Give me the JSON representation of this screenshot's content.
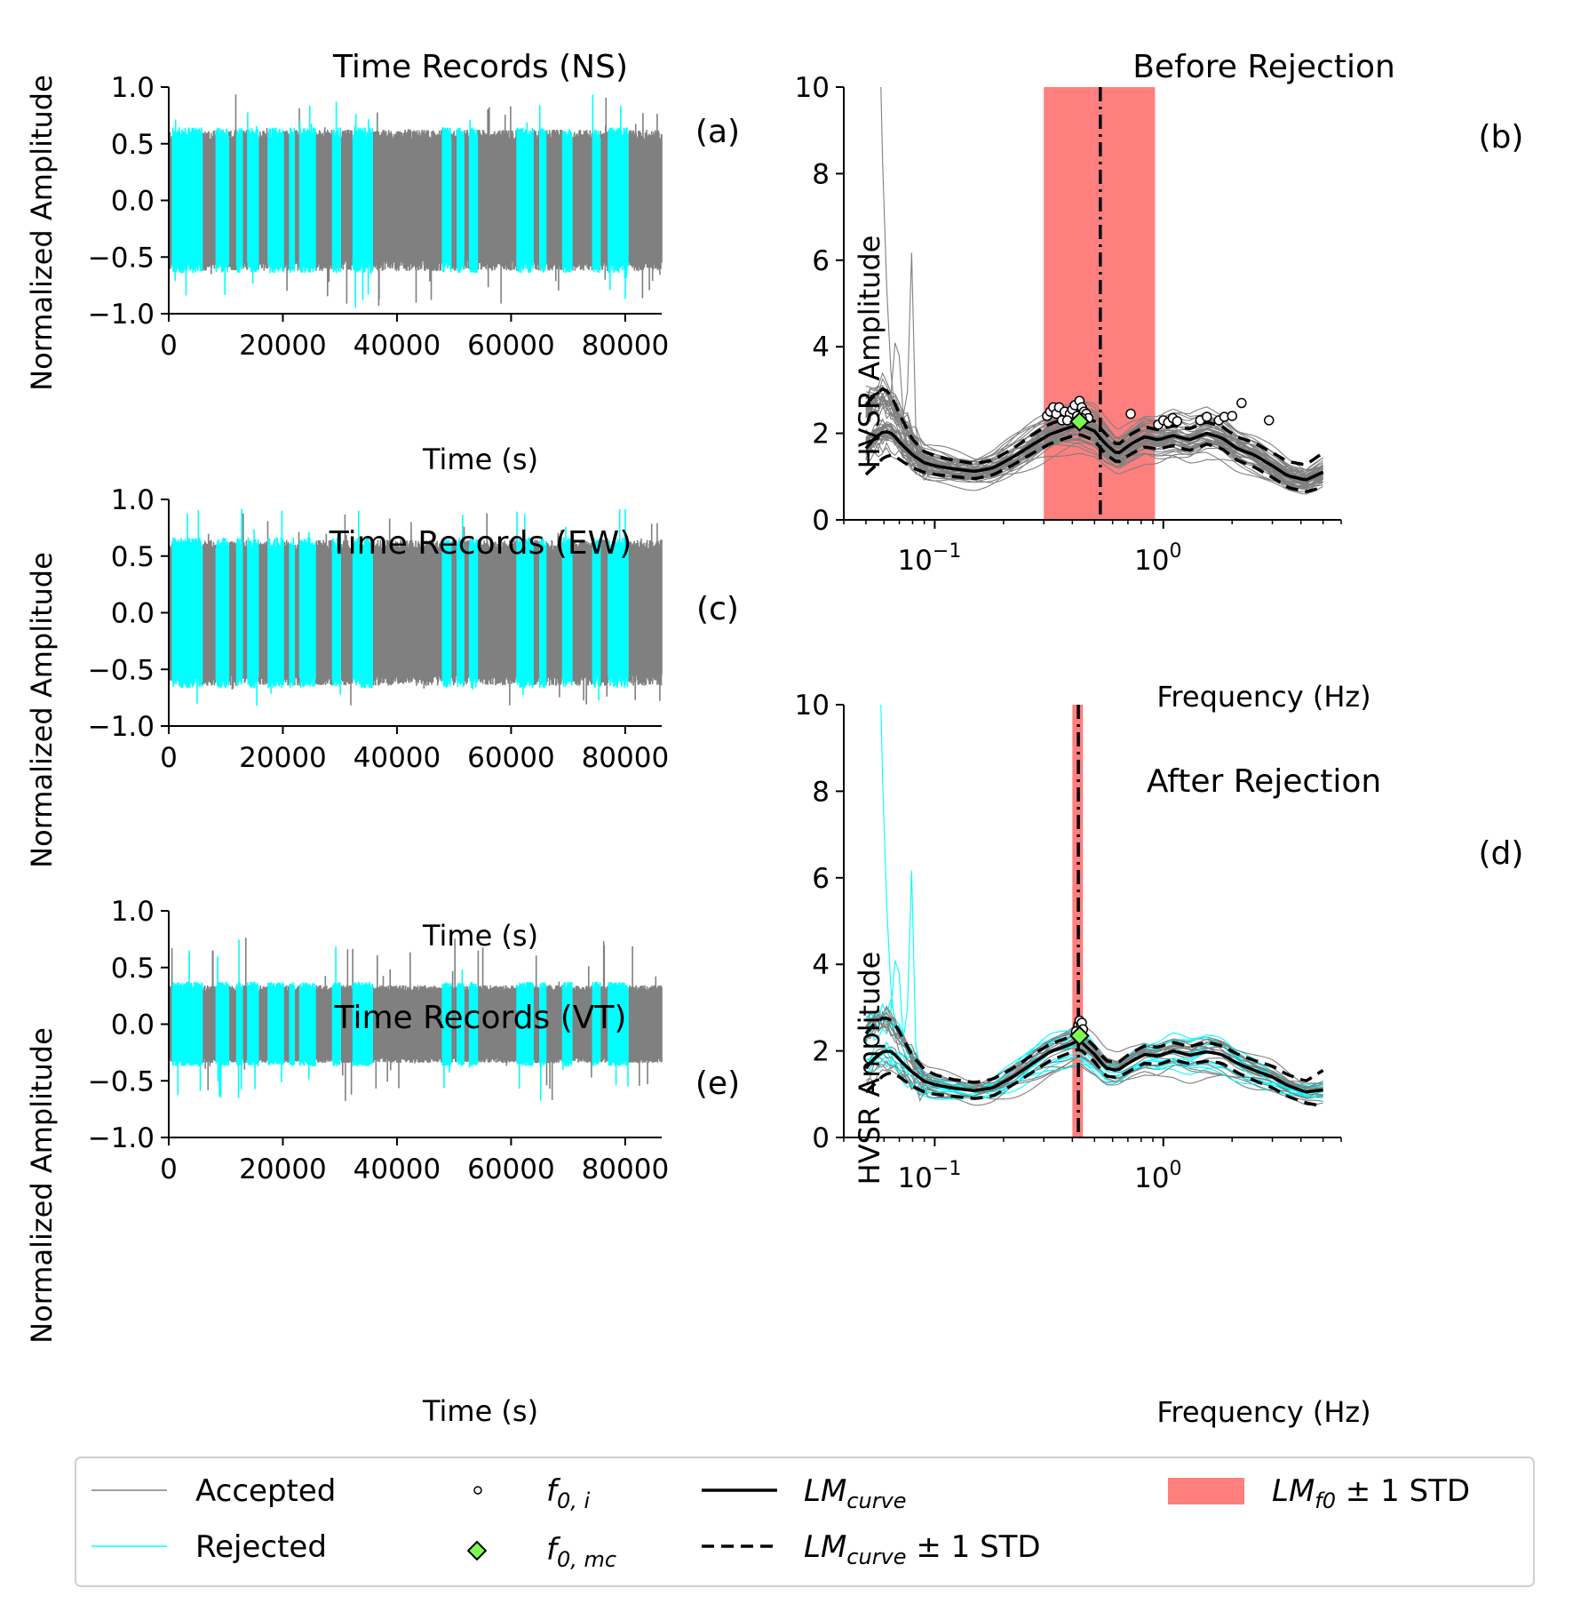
{
  "colors": {
    "accepted": "#808080",
    "rejected": "#00ffff",
    "lm_curve": "#000000",
    "f0_band": "#ff7f7f",
    "f0_mc": "#7cfc50"
  },
  "legend": {
    "items": [
      {
        "key": "accepted",
        "label": "Accepted"
      },
      {
        "key": "rejected",
        "label": "Rejected"
      },
      {
        "key": "f0i",
        "label": "f",
        "sub": "0, i"
      },
      {
        "key": "f0mc",
        "label": "f",
        "sub": "0, mc"
      },
      {
        "key": "lm",
        "label": "LM",
        "sub": "curve"
      },
      {
        "key": "lmstd",
        "label": "LM",
        "sub": "curve",
        "suffix": " ± 1 STD"
      },
      {
        "key": "band",
        "label": "LM",
        "sub": "f0",
        "suffix": " ± 1 STD"
      }
    ]
  },
  "chart_data": [
    {
      "id": "a",
      "type": "line",
      "title": "Time Records (NS)",
      "panel_label": "(a)",
      "xlabel": "Time (s)",
      "ylabel": "Normalized Amplitude",
      "xlim": [
        0,
        86400
      ],
      "ylim": [
        -1.0,
        1.0
      ],
      "xticks": [
        "0",
        "20000",
        "40000",
        "60000",
        "80000"
      ],
      "yticks": [
        "1.0",
        "0.5",
        "0.0",
        "−0.5",
        "−1.0"
      ],
      "envelope": {
        "accepted_amplitude": 0.6,
        "rejected_amplitude": 0.62,
        "max_amplitude": 0.95,
        "min_amplitude": -0.98
      },
      "rejected_windows": [
        [
          600,
          5900
        ],
        [
          8300,
          10500
        ],
        [
          11900,
          12900
        ],
        [
          13800,
          15700
        ],
        [
          17400,
          20100
        ],
        [
          21200,
          22000
        ],
        [
          22900,
          25700
        ],
        [
          28700,
          30100
        ],
        [
          32300,
          35700
        ],
        [
          48000,
          49500
        ],
        [
          50500,
          51700
        ],
        [
          52700,
          54100
        ],
        [
          61000,
          63900
        ],
        [
          65000,
          66100
        ],
        [
          69000,
          70700
        ],
        [
          74300,
          75600
        ],
        [
          77000,
          80500
        ]
      ]
    },
    {
      "id": "c",
      "type": "line",
      "title": "Time Records (EW)",
      "panel_label": "(c)",
      "xlabel": "Time (s)",
      "ylabel": "Normalized Amplitude",
      "xlim": [
        0,
        86400
      ],
      "ylim": [
        -1.0,
        1.0
      ],
      "xticks": [
        "0",
        "20000",
        "40000",
        "60000",
        "80000"
      ],
      "yticks": [
        "1.0",
        "0.5",
        "0.0",
        "−0.5",
        "−1.0"
      ],
      "envelope": {
        "accepted_amplitude": 0.62,
        "rejected_amplitude": 0.64,
        "max_amplitude": 0.92,
        "min_amplitude": -0.83
      }
    },
    {
      "id": "e",
      "type": "line",
      "title": "Time Records (VT)",
      "panel_label": "(e)",
      "xlabel": "Time (s)",
      "ylabel": "Normalized Amplitude",
      "xlim": [
        0,
        86400
      ],
      "ylim": [
        -1.0,
        1.0
      ],
      "xticks": [
        "0",
        "20000",
        "40000",
        "60000",
        "80000"
      ],
      "yticks": [
        "1.0",
        "0.5",
        "0.0",
        "−0.5",
        "−1.0"
      ],
      "envelope": {
        "accepted_amplitude": 0.33,
        "rejected_amplitude": 0.36,
        "max_amplitude": 0.78,
        "min_amplitude": -0.68
      }
    },
    {
      "id": "b",
      "type": "line",
      "title": "Before Rejection",
      "panel_label": "(b)",
      "xlabel": "Frequency (Hz)",
      "ylabel": "HVSR Amplitude",
      "xscale": "log",
      "xlim": [
        0.04,
        6.0
      ],
      "ylim": [
        0,
        10
      ],
      "xticks": [
        0.1,
        1.0
      ],
      "yticks": [
        "10",
        "8",
        "6",
        "4",
        "2",
        "0"
      ],
      "lm_curve": {
        "freq": [
          0.05,
          0.055,
          0.06,
          0.065,
          0.07,
          0.08,
          0.09,
          0.1,
          0.12,
          0.15,
          0.18,
          0.22,
          0.27,
          0.32,
          0.38,
          0.43,
          0.5,
          0.56,
          0.63,
          0.72,
          0.83,
          0.95,
          1.1,
          1.3,
          1.55,
          1.8,
          2.1,
          2.5,
          3.0,
          3.5,
          4.2,
          5.0
        ],
        "amp": [
          1.65,
          1.9,
          2.05,
          2.0,
          1.8,
          1.5,
          1.32,
          1.25,
          1.18,
          1.12,
          1.2,
          1.45,
          1.75,
          1.98,
          2.12,
          2.2,
          2.05,
          1.75,
          1.52,
          1.75,
          1.92,
          1.85,
          1.95,
          1.85,
          2.0,
          1.9,
          1.65,
          1.5,
          1.25,
          1.02,
          0.92,
          1.1
        ]
      },
      "lm_upper": [
        2.65,
        2.9,
        3.05,
        2.85,
        2.45,
        1.85,
        1.58,
        1.48,
        1.38,
        1.3,
        1.38,
        1.65,
        1.98,
        2.22,
        2.35,
        2.42,
        2.28,
        1.98,
        1.72,
        1.98,
        2.15,
        2.08,
        2.18,
        2.1,
        2.26,
        2.16,
        1.92,
        1.78,
        1.55,
        1.35,
        1.27,
        1.55
      ],
      "lm_lower": [
        1.05,
        1.25,
        1.45,
        1.5,
        1.4,
        1.2,
        1.1,
        1.05,
        1.0,
        0.95,
        1.04,
        1.27,
        1.55,
        1.76,
        1.9,
        1.98,
        1.83,
        1.52,
        1.32,
        1.52,
        1.69,
        1.63,
        1.72,
        1.6,
        1.75,
        1.65,
        1.38,
        1.22,
        0.98,
        0.75,
        0.65,
        0.75
      ],
      "f0_mc": {
        "freq": 0.43,
        "amp": 2.27
      },
      "f0_mean_line": 0.53,
      "f0_band": [
        0.3,
        0.92
      ],
      "f0_i": [
        [
          0.31,
          2.4
        ],
        [
          0.32,
          2.5
        ],
        [
          0.33,
          2.6
        ],
        [
          0.34,
          2.45
        ],
        [
          0.35,
          2.6
        ],
        [
          0.36,
          2.3
        ],
        [
          0.37,
          2.5
        ],
        [
          0.39,
          2.45
        ],
        [
          0.4,
          2.55
        ],
        [
          0.41,
          2.65
        ],
        [
          0.42,
          2.4
        ],
        [
          0.43,
          2.75
        ],
        [
          0.44,
          2.6
        ],
        [
          0.45,
          2.5
        ],
        [
          0.46,
          2.45
        ],
        [
          0.47,
          2.35
        ],
        [
          0.72,
          2.45
        ],
        [
          0.95,
          2.2
        ],
        [
          1.0,
          2.3
        ],
        [
          1.05,
          2.25
        ],
        [
          1.1,
          2.35
        ],
        [
          1.15,
          2.28
        ],
        [
          1.45,
          2.3
        ],
        [
          1.55,
          2.38
        ],
        [
          1.75,
          2.3
        ],
        [
          1.85,
          2.38
        ],
        [
          2.0,
          2.4
        ],
        [
          2.2,
          2.7
        ],
        [
          2.9,
          2.3
        ],
        [
          0.38,
          2.3
        ],
        [
          0.44,
          2.35
        ]
      ]
    },
    {
      "id": "d",
      "type": "line",
      "title": "After Rejection",
      "panel_label": "(d)",
      "xlabel": "Frequency (Hz)",
      "ylabel": "HVSR Amplitude",
      "xscale": "log",
      "xlim": [
        0.04,
        6.0
      ],
      "ylim": [
        0,
        10
      ],
      "xticks": [
        0.1,
        1.0
      ],
      "yticks": [
        "10",
        "8",
        "6",
        "4",
        "2",
        "0"
      ],
      "lm_curve": {
        "freq": [
          0.05,
          0.055,
          0.06,
          0.065,
          0.07,
          0.08,
          0.09,
          0.1,
          0.12,
          0.15,
          0.18,
          0.22,
          0.27,
          0.32,
          0.38,
          0.43,
          0.5,
          0.56,
          0.63,
          0.72,
          0.83,
          0.95,
          1.1,
          1.3,
          1.55,
          1.8,
          2.1,
          2.5,
          3.0,
          3.5,
          4.2,
          5.0
        ],
        "amp": [
          1.6,
          1.85,
          2.0,
          1.98,
          1.8,
          1.5,
          1.3,
          1.22,
          1.14,
          1.08,
          1.15,
          1.4,
          1.72,
          1.98,
          2.12,
          2.25,
          1.92,
          1.6,
          1.55,
          1.75,
          1.92,
          1.88,
          2.0,
          1.9,
          1.98,
          1.92,
          1.72,
          1.55,
          1.4,
          1.2,
          1.05,
          1.1
        ]
      },
      "lm_upper": [
        2.4,
        2.65,
        2.78,
        2.7,
        2.45,
        1.88,
        1.58,
        1.45,
        1.34,
        1.27,
        1.35,
        1.6,
        1.92,
        2.16,
        2.3,
        2.45,
        2.1,
        1.78,
        1.72,
        1.95,
        2.12,
        2.08,
        2.2,
        2.1,
        2.2,
        2.12,
        1.93,
        1.78,
        1.65,
        1.45,
        1.3,
        1.55
      ],
      "lm_lower": [
        1.05,
        1.25,
        1.45,
        1.5,
        1.4,
        1.18,
        1.05,
        1.0,
        0.95,
        0.9,
        0.96,
        1.22,
        1.52,
        1.78,
        1.93,
        2.05,
        1.75,
        1.42,
        1.38,
        1.55,
        1.72,
        1.68,
        1.8,
        1.7,
        1.76,
        1.72,
        1.5,
        1.32,
        1.15,
        0.95,
        0.8,
        0.72
      ],
      "f0_mc": {
        "freq": 0.43,
        "amp": 2.35
      },
      "f0_mean_line": 0.425,
      "f0_band": [
        0.4,
        0.445
      ],
      "f0_i": [
        [
          0.42,
          2.5
        ],
        [
          0.425,
          2.6
        ],
        [
          0.43,
          2.7
        ],
        [
          0.435,
          2.55
        ],
        [
          0.44,
          2.65
        ],
        [
          0.415,
          2.45
        ],
        [
          0.445,
          2.5
        ],
        [
          0.43,
          2.4
        ]
      ]
    }
  ]
}
